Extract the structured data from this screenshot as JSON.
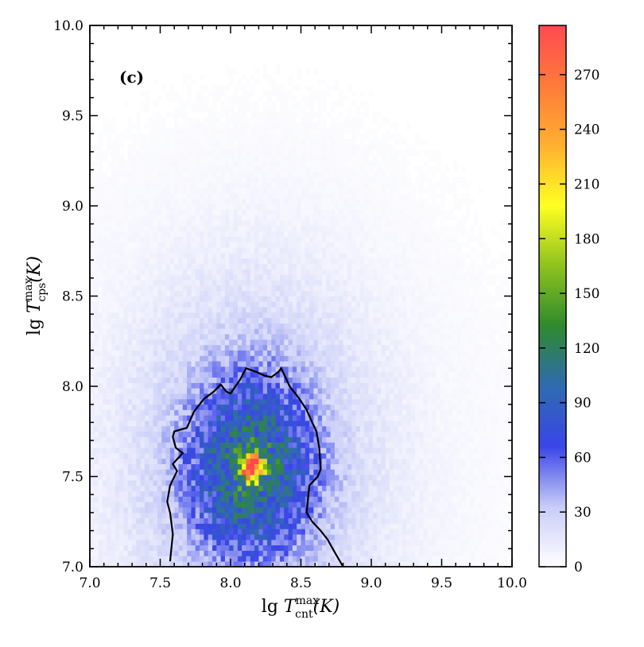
{
  "chart_data": {
    "type": "heatmap",
    "panel_label": "(c)",
    "xlabel": "lg T_cnt^max (K)",
    "ylabel": "lg T_cps^max (K)",
    "xlabel_parts": {
      "prefix": "lg ",
      "symbol": "T",
      "sup": "max",
      "sub": "cnt",
      "unit": "(K)"
    },
    "ylabel_parts": {
      "prefix": "lg ",
      "symbol": "T",
      "sup": "max",
      "sub": "cps",
      "unit": "(K)"
    },
    "xlim": [
      7.0,
      10.0
    ],
    "ylim": [
      7.0,
      10.0
    ],
    "x_ticks": [
      "7.0",
      "7.5",
      "8.0",
      "8.5",
      "9.0",
      "9.5",
      "10.0"
    ],
    "y_ticks": [
      "7.0",
      "7.5",
      "8.0",
      "8.5",
      "9.0",
      "9.5",
      "10.0"
    ],
    "colorbar": {
      "min": 0,
      "max": 297,
      "ticks": [
        "0",
        "30",
        "60",
        "90",
        "120",
        "150",
        "180",
        "210",
        "240",
        "270"
      ],
      "colors": [
        "#ffffff",
        "#c8ccf7",
        "#3a45e8",
        "#2f6bb0",
        "#2e8a2e",
        "#8ec21d",
        "#ffff22",
        "#ffb030",
        "#ff7a3a",
        "#ff4a50"
      ]
    },
    "density_peak": {
      "x": 8.15,
      "y": 7.55,
      "value": 297
    },
    "contour": {
      "x": [
        7.57,
        7.59,
        7.57,
        7.55,
        7.57,
        7.62,
        7.59,
        7.66,
        7.61,
        7.59,
        7.6,
        7.69,
        7.74,
        7.81,
        7.88,
        7.93,
        7.97,
        8.0,
        8.07,
        8.11,
        8.18,
        8.24,
        8.29,
        8.34,
        8.36,
        8.42,
        8.49,
        8.54,
        8.58,
        8.61,
        8.63,
        8.64,
        8.62,
        8.56,
        8.54,
        8.58,
        8.64,
        8.69,
        8.74,
        8.8
      ],
      "y": [
        7.03,
        7.18,
        7.3,
        7.36,
        7.45,
        7.53,
        7.57,
        7.63,
        7.66,
        7.72,
        7.75,
        7.77,
        7.86,
        7.93,
        7.97,
        8.01,
        7.97,
        7.96,
        8.04,
        8.1,
        8.08,
        8.06,
        8.05,
        8.08,
        8.1,
        8.0,
        7.93,
        7.87,
        7.8,
        7.75,
        7.66,
        7.54,
        7.5,
        7.45,
        7.3,
        7.25,
        7.2,
        7.15,
        7.08,
        7.0
      ]
    }
  }
}
